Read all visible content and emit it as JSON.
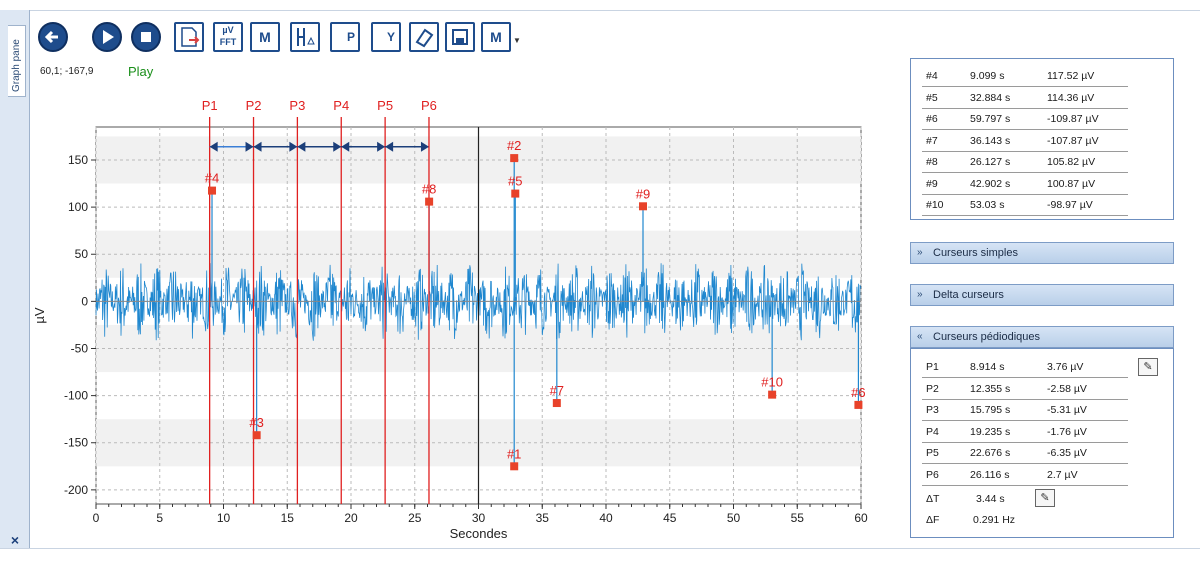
{
  "side_tab": {
    "label": "Graph pane",
    "close": "×"
  },
  "toolbar": {
    "back_icon": "arrow-left-icon",
    "play_icon": "play-icon",
    "stop_icon": "stop-icon",
    "fft_label": "µV FFT",
    "m_label": "M",
    "p_label": "P",
    "y_label": "Y",
    "m2_label": "M"
  },
  "coord_readout": "60,1; -167,9",
  "status": "Play",
  "chart_data": {
    "type": "line",
    "xlabel": "Secondes",
    "ylabel": "µV",
    "xlim": [
      0,
      60
    ],
    "ylim": [
      -215,
      185
    ],
    "xticks": [
      0,
      5,
      10,
      15,
      20,
      25,
      30,
      35,
      40,
      45,
      50,
      55,
      60
    ],
    "yticks": [
      150,
      100,
      50,
      0,
      -50,
      -100,
      -150,
      -200
    ],
    "grid": true,
    "series_color": "#1f87cf",
    "cursor_color": "#e02020",
    "mid_marker_x": 30,
    "periodic_cursors": [
      {
        "label": "P1",
        "x": 8.914
      },
      {
        "label": "P2",
        "x": 12.355
      },
      {
        "label": "P3",
        "x": 15.795
      },
      {
        "label": "P4",
        "x": 19.235
      },
      {
        "label": "P5",
        "x": 22.676
      },
      {
        "label": "P6",
        "x": 26.116
      }
    ],
    "peaks": [
      {
        "label": "#1",
        "x": 32.8,
        "y": -175
      },
      {
        "label": "#2",
        "x": 32.8,
        "y": 152
      },
      {
        "label": "#3",
        "x": 12.6,
        "y": -142
      },
      {
        "label": "#4",
        "x": 9.099,
        "y": 117.52
      },
      {
        "label": "#5",
        "x": 32.884,
        "y": 114.36
      },
      {
        "label": "#6",
        "x": 59.797,
        "y": -109.87
      },
      {
        "label": "#7",
        "x": 36.143,
        "y": -107.87
      },
      {
        "label": "#8",
        "x": 26.127,
        "y": 105.82
      },
      {
        "label": "#9",
        "x": 42.902,
        "y": 100.87
      },
      {
        "label": "#10",
        "x": 53.03,
        "y": -98.97
      }
    ]
  },
  "peak_table": [
    {
      "id": "#4",
      "time": "9.099 s",
      "value": "117.52 µV"
    },
    {
      "id": "#5",
      "time": "32.884 s",
      "value": "114.36 µV"
    },
    {
      "id": "#6",
      "time": "59.797 s",
      "value": "-109.87 µV"
    },
    {
      "id": "#7",
      "time": "36.143 s",
      "value": "-107.87 µV"
    },
    {
      "id": "#8",
      "time": "26.127 s",
      "value": "105.82 µV"
    },
    {
      "id": "#9",
      "time": "42.902 s",
      "value": "100.87 µV"
    },
    {
      "id": "#10",
      "time": "53.03 s",
      "value": "-98.97 µV"
    }
  ],
  "sections": {
    "simple": "Curseurs simples",
    "delta": "Delta curseurs",
    "periodic": "Curseurs pédiodiques"
  },
  "periodic_table": [
    {
      "id": "P1",
      "time": "8.914 s",
      "value": "3.76 µV"
    },
    {
      "id": "P2",
      "time": "12.355 s",
      "value": "-2.58 µV"
    },
    {
      "id": "P3",
      "time": "15.795 s",
      "value": "-5.31 µV"
    },
    {
      "id": "P4",
      "time": "19.235 s",
      "value": "-1.76 µV"
    },
    {
      "id": "P5",
      "time": "22.676 s",
      "value": "-6.35 µV"
    },
    {
      "id": "P6",
      "time": "26.116 s",
      "value": "2.7 µV"
    }
  ],
  "delta": {
    "dt_label": "ΔT",
    "dt_value": "3.44 s",
    "df_label": "ΔF",
    "df_value": "0.291 Hz"
  }
}
